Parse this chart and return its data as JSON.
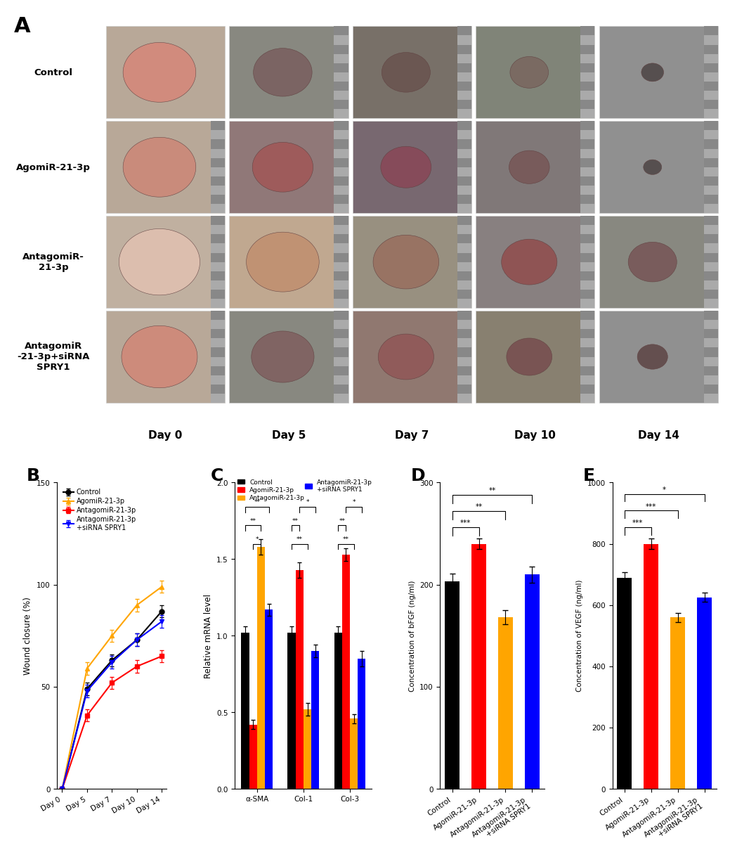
{
  "panel_A_label": "A",
  "panel_B_label": "B",
  "panel_C_label": "C",
  "panel_D_label": "D",
  "panel_E_label": "E",
  "row_labels": [
    "Control",
    "AgomiR-21-3p",
    "AntagomiR-\n21-3p",
    "AntagomiR\n-21-3p+siRNA\nSPRY1"
  ],
  "col_labels": [
    "Day 0",
    "Day 5",
    "Day 7",
    "Day 10",
    "Day 14"
  ],
  "line_days": [
    "Day 0",
    "Day 5",
    "Day 7",
    "Day 10",
    "Day 14"
  ],
  "line_control": [
    0,
    49,
    63,
    73,
    87
  ],
  "line_agomiR": [
    0,
    59,
    75,
    90,
    99
  ],
  "line_antagomiR": [
    0,
    36,
    52,
    60,
    65
  ],
  "line_combo": [
    0,
    48,
    62,
    73,
    82
  ],
  "line_err_control": [
    0,
    3,
    3,
    3,
    3
  ],
  "line_err_agomiR": [
    0,
    3,
    3,
    3,
    3
  ],
  "line_err_antagomiR": [
    0,
    3,
    3,
    3,
    3
  ],
  "line_err_combo": [
    0,
    3,
    3,
    3,
    3
  ],
  "line_colors": [
    "#000000",
    "#FFA500",
    "#FF0000",
    "#0000FF"
  ],
  "line_labels": [
    "Control",
    "AgomiR-21-3p",
    "AntagomiR-21-3p",
    "AntagomiR-21-3p\n+siRNA SPRY1"
  ],
  "line_markers": [
    "o",
    "^",
    "s",
    "v"
  ],
  "bar_groups": [
    "α-SMA",
    "Col-1",
    "Col-3"
  ],
  "bar_control": [
    1.02,
    1.02,
    1.02
  ],
  "bar_agomiR": [
    0.42,
    1.43,
    1.53
  ],
  "bar_antagomiR": [
    1.58,
    0.52,
    0.46
  ],
  "bar_combo": [
    1.17,
    0.9,
    0.85
  ],
  "bar_colors": [
    "#000000",
    "#FF0000",
    "#FFA500",
    "#0000FF"
  ],
  "bar_error_control": [
    0.04,
    0.04,
    0.04
  ],
  "bar_error_agomiR": [
    0.03,
    0.05,
    0.04
  ],
  "bar_error_antagomiR": [
    0.05,
    0.04,
    0.03
  ],
  "bar_error_combo": [
    0.04,
    0.04,
    0.05
  ],
  "bar_legend": [
    "Control",
    "AgomiR-21-3p",
    "AntagomiR-21-3p",
    "AntagomiR-21-3p\n+siRNA SPRY1"
  ],
  "bar_ylabel": "Relative mRNA level",
  "bar_ylim": [
    0,
    2.0
  ],
  "bfgf_groups": [
    "Control",
    "AgomiR-21-3p",
    "AntagomiR-21-3p",
    "AntagomiR-21-3p\n+siRNA SPRY1"
  ],
  "bfgf_values": [
    203,
    240,
    168,
    210
  ],
  "bfgf_errors": [
    8,
    5,
    7,
    8
  ],
  "bfgf_colors": [
    "#000000",
    "#FF0000",
    "#FFA500",
    "#0000FF"
  ],
  "bfgf_ylabel": "Concentration of bFGF (ng/ml)",
  "bfgf_ylim": [
    0,
    300
  ],
  "bfgf_yticks": [
    0,
    100,
    200,
    300
  ],
  "vegf_groups": [
    "Control",
    "AgomiR-21-3p",
    "AntagomiR-21-3p",
    "AntagomiR-21-3p\n+siRNA SPRY1"
  ],
  "vegf_values": [
    690,
    800,
    560,
    625
  ],
  "vegf_errors": [
    18,
    18,
    15,
    15
  ],
  "vegf_colors": [
    "#000000",
    "#FF0000",
    "#FFA500",
    "#0000FF"
  ],
  "vegf_ylabel": "Concentration of VEGF (ng/ml)",
  "vegf_ylim": [
    0,
    1000
  ],
  "vegf_yticks": [
    0,
    200,
    400,
    600,
    800,
    1000
  ],
  "fig_width": 10.2,
  "fig_height": 11.47
}
